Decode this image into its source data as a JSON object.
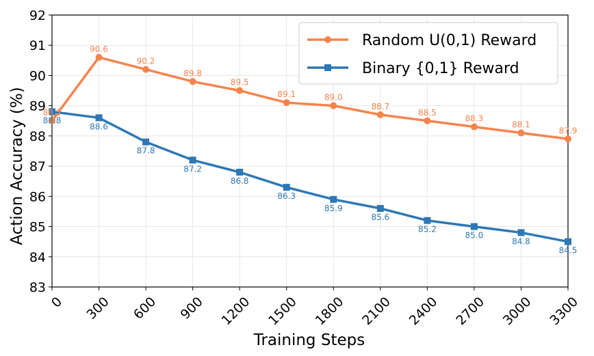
{
  "chart_data": {
    "type": "line",
    "xlabel": "Training Steps",
    "ylabel": "Action Accuracy (%)",
    "xlim": [
      0,
      3300
    ],
    "ylim": [
      83,
      92
    ],
    "x_ticks": [
      "0",
      "300",
      "600",
      "900",
      "1200",
      "1500",
      "1800",
      "2100",
      "2400",
      "2700",
      "3000",
      "3300"
    ],
    "y_ticks": [
      "83",
      "84",
      "85",
      "86",
      "87",
      "88",
      "89",
      "90",
      "91",
      "92"
    ],
    "grid": true,
    "legend_position": "top-right",
    "x": [
      0,
      300,
      600,
      900,
      1200,
      1500,
      1800,
      2100,
      2400,
      2700,
      3000,
      3300
    ],
    "series": [
      {
        "name": "Random U(0,1) Reward",
        "color": "#F5844C",
        "marker": "circle",
        "values": [
          88.5,
          90.6,
          90.2,
          89.8,
          89.5,
          89.1,
          89.0,
          88.7,
          88.5,
          88.3,
          88.1,
          87.9
        ],
        "labels": [
          "88.5",
          "90.6",
          "90.2",
          "89.8",
          "89.5",
          "89.1",
          "89.0",
          "88.7",
          "88.5",
          "88.3",
          "88.1",
          "87.9"
        ]
      },
      {
        "name": "Binary {0,1} Reward",
        "color": "#2E78B5",
        "marker": "square",
        "values": [
          88.8,
          88.6,
          87.8,
          87.2,
          86.8,
          86.3,
          85.9,
          85.6,
          85.2,
          85.0,
          84.8,
          84.5
        ],
        "labels": [
          "88.8",
          "88.6",
          "87.8",
          "87.2",
          "86.8",
          "86.3",
          "85.9",
          "85.6",
          "85.2",
          "85.0",
          "84.8",
          "84.5"
        ]
      }
    ]
  }
}
